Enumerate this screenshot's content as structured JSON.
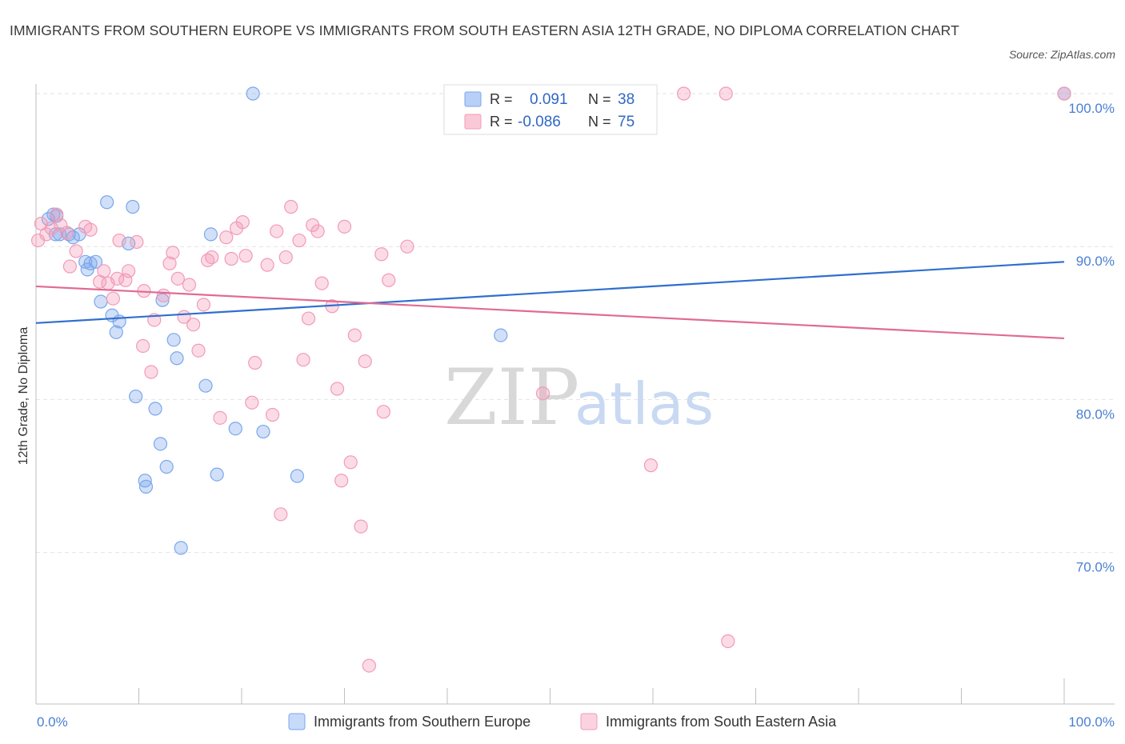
{
  "title": "IMMIGRANTS FROM SOUTHERN EUROPE VS IMMIGRANTS FROM SOUTH EASTERN ASIA 12TH GRADE, NO DIPLOMA CORRELATION CHART",
  "source": "Source: ZipAtlas.com",
  "watermark": {
    "zip": "ZIP",
    "atlas": "atlas"
  },
  "legend": {
    "r_label": "R =",
    "n_label": "N =",
    "rows": [
      {
        "r": "0.091",
        "n": "38",
        "color": "#a9c6f5"
      },
      {
        "r": "-0.086",
        "n": "75",
        "color": "#f7b6c9"
      }
    ]
  },
  "chart_data": {
    "type": "scatter",
    "ylabel": "12th Grade, No Diploma",
    "x_tick_labels": [
      "0.0%",
      "100.0%"
    ],
    "y_tick_labels": [
      "100.0%",
      "90.0%",
      "80.0%",
      "70.0%"
    ],
    "xlim": [
      0,
      100
    ],
    "ylim": [
      60.5,
      101
    ],
    "y_ticks": [
      100,
      90,
      80,
      70
    ],
    "grid": true,
    "series": [
      {
        "name": "Immigrants from Southern Europe",
        "color": "#7aa7ec",
        "line_color": "#2f6fcf",
        "trend": [
          [
            0,
            85.0
          ],
          [
            100,
            89.0
          ]
        ],
        "points": [
          [
            21.1,
            100.0
          ],
          [
            100.0,
            100.0
          ],
          [
            1.2,
            91.8
          ],
          [
            1.7,
            92.1
          ],
          [
            1.9,
            90.8
          ],
          [
            3.2,
            90.8
          ],
          [
            3.6,
            90.6
          ],
          [
            4.2,
            90.8
          ],
          [
            6.9,
            92.9
          ],
          [
            9.4,
            92.6
          ],
          [
            17.0,
            90.8
          ],
          [
            9.0,
            90.2
          ],
          [
            4.8,
            89.0
          ],
          [
            5.8,
            89.0
          ],
          [
            5.0,
            88.5
          ],
          [
            6.3,
            86.4
          ],
          [
            12.3,
            86.5
          ],
          [
            7.4,
            85.5
          ],
          [
            8.1,
            85.1
          ],
          [
            7.8,
            84.4
          ],
          [
            13.4,
            83.9
          ],
          [
            13.7,
            82.7
          ],
          [
            16.5,
            80.9
          ],
          [
            9.7,
            80.2
          ],
          [
            11.6,
            79.4
          ],
          [
            19.4,
            78.1
          ],
          [
            22.1,
            77.9
          ],
          [
            12.1,
            77.1
          ],
          [
            12.7,
            75.6
          ],
          [
            17.6,
            75.1
          ],
          [
            25.4,
            75.0
          ],
          [
            10.6,
            74.7
          ],
          [
            10.7,
            74.3
          ],
          [
            14.1,
            70.3
          ],
          [
            2.0,
            92.0
          ],
          [
            5.3,
            88.9
          ],
          [
            2.3,
            90.8
          ],
          [
            45.2,
            84.2
          ]
        ]
      },
      {
        "name": "Immigrants from South Eastern Asia",
        "color": "#f39ab6",
        "line_color": "#e06b94",
        "trend": [
          [
            0,
            87.4
          ],
          [
            100,
            84.0
          ]
        ],
        "points": [
          [
            0.5,
            91.5
          ],
          [
            1.0,
            90.8
          ],
          [
            1.5,
            91.2
          ],
          [
            2.0,
            92.1
          ],
          [
            2.4,
            91.4
          ],
          [
            3.0,
            90.9
          ],
          [
            3.3,
            88.7
          ],
          [
            3.9,
            89.7
          ],
          [
            4.8,
            91.3
          ],
          [
            5.3,
            91.1
          ],
          [
            6.2,
            87.7
          ],
          [
            6.6,
            88.4
          ],
          [
            7.0,
            87.6
          ],
          [
            7.5,
            86.6
          ],
          [
            7.9,
            87.9
          ],
          [
            8.1,
            90.4
          ],
          [
            8.7,
            87.8
          ],
          [
            9.0,
            88.4
          ],
          [
            9.8,
            90.3
          ],
          [
            10.5,
            87.1
          ],
          [
            11.5,
            85.2
          ],
          [
            10.4,
            83.5
          ],
          [
            11.2,
            81.8
          ],
          [
            12.4,
            86.8
          ],
          [
            13.0,
            88.9
          ],
          [
            13.3,
            89.6
          ],
          [
            13.8,
            87.9
          ],
          [
            14.4,
            85.4
          ],
          [
            14.9,
            87.5
          ],
          [
            15.3,
            84.9
          ],
          [
            15.8,
            83.2
          ],
          [
            16.3,
            86.2
          ],
          [
            16.7,
            89.1
          ],
          [
            17.1,
            89.3
          ],
          [
            17.9,
            78.8
          ],
          [
            18.5,
            90.6
          ],
          [
            19.0,
            89.2
          ],
          [
            19.5,
            91.2
          ],
          [
            20.1,
            91.6
          ],
          [
            20.4,
            89.4
          ],
          [
            21.0,
            79.8
          ],
          [
            21.3,
            82.4
          ],
          [
            22.5,
            88.8
          ],
          [
            23.0,
            79.0
          ],
          [
            23.4,
            91.0
          ],
          [
            23.8,
            72.5
          ],
          [
            24.3,
            89.3
          ],
          [
            24.8,
            92.6
          ],
          [
            25.6,
            90.4
          ],
          [
            26.0,
            82.6
          ],
          [
            26.5,
            85.3
          ],
          [
            26.9,
            91.4
          ],
          [
            27.4,
            91.0
          ],
          [
            27.8,
            87.6
          ],
          [
            28.8,
            86.1
          ],
          [
            29.3,
            80.7
          ],
          [
            29.7,
            74.7
          ],
          [
            30.0,
            91.3
          ],
          [
            30.6,
            75.9
          ],
          [
            31.0,
            84.2
          ],
          [
            31.6,
            71.7
          ],
          [
            32.0,
            82.5
          ],
          [
            32.4,
            62.6
          ],
          [
            33.6,
            89.5
          ],
          [
            33.8,
            79.2
          ],
          [
            34.3,
            87.8
          ],
          [
            36.1,
            90.0
          ],
          [
            49.3,
            80.4
          ],
          [
            59.8,
            75.7
          ],
          [
            63.0,
            100.0
          ],
          [
            67.1,
            100.0
          ],
          [
            67.3,
            64.2
          ],
          [
            100.0,
            100.0
          ],
          [
            42.5,
            100.0
          ],
          [
            0.2,
            90.4
          ]
        ]
      }
    ]
  }
}
